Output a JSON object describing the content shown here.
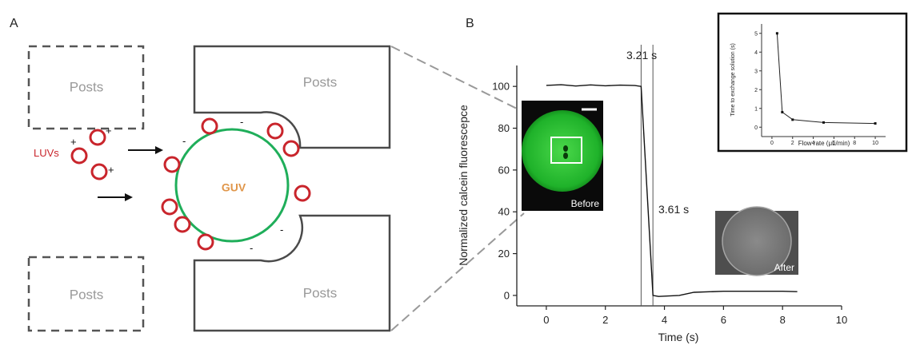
{
  "panel_a": {
    "label": "A",
    "posts_label": "Posts",
    "luvs_label": "LUVs",
    "guv_label": "GUV",
    "plus": "+",
    "minus": "-",
    "colors": {
      "luv": "#c9252c",
      "guv": "#1fae5a",
      "guv_text": "#e0964a",
      "posts_text": "#888888",
      "wall": "#4a4a4a"
    }
  },
  "panel_b": {
    "label": "B",
    "chart_data": {
      "type": "line",
      "xlabel": "Time (s)",
      "ylabel": "Normalized calcein fluorescepce",
      "xlim": [
        -1,
        10
      ],
      "ylim": [
        -5,
        110
      ],
      "xticks": [
        "0",
        "2",
        "4",
        "6",
        "8",
        "10"
      ],
      "yticks": [
        "0",
        "20",
        "40",
        "60",
        "80",
        "100"
      ],
      "series": [
        {
          "x": [
            0,
            0.5,
            1.0,
            1.5,
            2.0,
            2.5,
            3.0,
            3.21,
            3.61,
            3.8,
            4.5,
            5.0,
            6.0,
            7.0,
            8.0,
            8.5
          ],
          "y": [
            100.5,
            100.8,
            100.2,
            100.7,
            100.3,
            100.6,
            100.4,
            100,
            0,
            -0.5,
            0,
            1.5,
            2,
            2,
            2,
            1.8
          ]
        }
      ],
      "vlines": [
        3.21,
        3.61
      ],
      "annotations": [
        "3.21 s",
        "3.61 s"
      ]
    },
    "images": {
      "before_label": "Before",
      "after_label": "After"
    },
    "inset": {
      "type": "line",
      "xlabel": "Flow rate (μL/min)",
      "ylabel": "Time to exchange solution (s)",
      "xlim": [
        -1,
        11
      ],
      "ylim": [
        -0.5,
        5.5
      ],
      "xticks": [
        "0",
        "2",
        "4",
        "6",
        "8",
        "10"
      ],
      "yticks": [
        "0",
        "1",
        "2",
        "3",
        "4",
        "5"
      ],
      "x": [
        0.5,
        1,
        2,
        5,
        10
      ],
      "y": [
        5,
        0.8,
        0.4,
        0.25,
        0.2
      ]
    }
  }
}
